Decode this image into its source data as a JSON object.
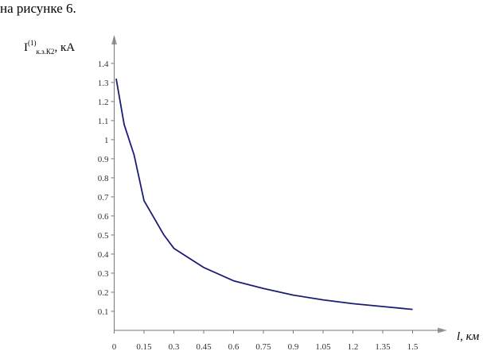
{
  "document": {
    "text": "на рисунке 6."
  },
  "chart_data": {
    "type": "line",
    "y_label": {
      "main": "I",
      "sup": "(1)",
      "sub": "к.з.К2",
      "unit": ", кА"
    },
    "x_label": "l, км",
    "x": [
      0.01,
      0.05,
      0.1,
      0.15,
      0.2,
      0.25,
      0.3,
      0.45,
      0.6,
      0.75,
      0.9,
      1.05,
      1.2,
      1.35,
      1.5
    ],
    "series": [
      {
        "name": "I(1)к.з.К2",
        "color": "#1c1c78",
        "values": [
          1.32,
          1.08,
          0.92,
          0.68,
          0.59,
          0.5,
          0.43,
          0.33,
          0.26,
          0.22,
          0.185,
          0.16,
          0.14,
          0.125,
          0.11
        ]
      }
    ],
    "xlim": [
      0,
      1.65
    ],
    "ylim": [
      0,
      1.52
    ],
    "xticks": [
      0,
      0.15,
      0.3,
      0.45,
      0.6,
      0.75,
      0.9,
      1.05,
      1.2,
      1.35,
      1.5
    ],
    "yticks": [
      0.1,
      0.2,
      0.3,
      0.4,
      0.5,
      0.6,
      0.7,
      0.8,
      0.9,
      1,
      1.1,
      1.2,
      1.3,
      1.4
    ],
    "grid": false
  }
}
